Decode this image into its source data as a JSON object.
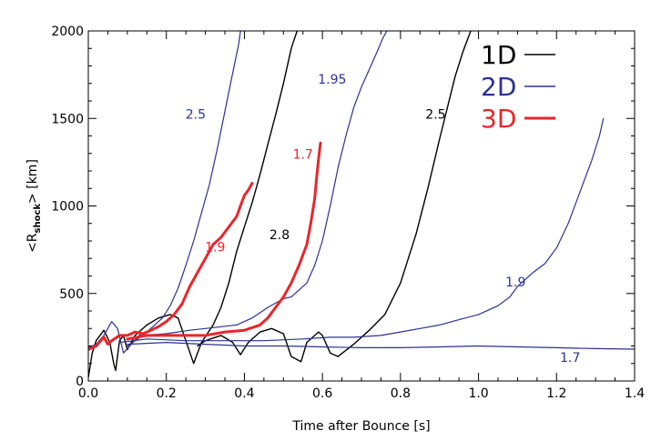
{
  "chart_data": {
    "type": "line",
    "xlabel": "Time after Bounce [s]",
    "ylabel_main": "<R",
    "ylabel_sub": "shock",
    "ylabel_tail": "> [km]",
    "xlim": [
      0,
      1.4
    ],
    "ylim": [
      0,
      2000
    ],
    "xticks": [
      0.0,
      0.2,
      0.4,
      0.6,
      0.8,
      1.0,
      1.2,
      1.4
    ],
    "xtick_labels": [
      "0.0",
      "0.2",
      "0.4",
      "0.6",
      "0.8",
      "1.0",
      "1.2",
      "1.4"
    ],
    "yticks": [
      0,
      500,
      1000,
      1500,
      2000
    ],
    "ytick_labels": [
      "0",
      "500",
      "1000",
      "1500",
      "2000"
    ],
    "grid": false,
    "legend_position": "top-right",
    "legend": [
      {
        "label": "1D",
        "color": "#000000"
      },
      {
        "label": "2D",
        "color": "#2e3192"
      },
      {
        "label": "3D",
        "color": "#e8262b"
      }
    ],
    "series": [
      {
        "dim": "1D",
        "color": "#000000",
        "width": 1.4,
        "points": [
          [
            0.0,
            20
          ],
          [
            0.01,
            160
          ],
          [
            0.02,
            230
          ],
          [
            0.04,
            290
          ],
          [
            0.055,
            220
          ],
          [
            0.065,
            100
          ],
          [
            0.07,
            60
          ],
          [
            0.08,
            230
          ],
          [
            0.09,
            260
          ],
          [
            0.1,
            180
          ],
          [
            0.12,
            260
          ],
          [
            0.15,
            320
          ],
          [
            0.18,
            360
          ],
          [
            0.21,
            380
          ],
          [
            0.23,
            360
          ],
          [
            0.25,
            230
          ],
          [
            0.27,
            100
          ],
          [
            0.29,
            220
          ],
          [
            0.32,
            320
          ],
          [
            0.34,
            420
          ],
          [
            0.36,
            560
          ],
          [
            0.38,
            740
          ],
          [
            0.4,
            880
          ],
          [
            0.42,
            1020
          ],
          [
            0.44,
            1180
          ],
          [
            0.46,
            1350
          ],
          [
            0.48,
            1520
          ],
          [
            0.5,
            1700
          ],
          [
            0.52,
            1900
          ],
          [
            0.535,
            2000
          ]
        ]
      },
      {
        "dim": "1D",
        "color": "#000000",
        "width": 1.4,
        "points": [
          [
            0.28,
            200
          ],
          [
            0.3,
            230
          ],
          [
            0.34,
            260
          ],
          [
            0.37,
            220
          ],
          [
            0.39,
            150
          ],
          [
            0.41,
            220
          ],
          [
            0.44,
            280
          ],
          [
            0.47,
            300
          ],
          [
            0.5,
            270
          ],
          [
            0.52,
            140
          ],
          [
            0.545,
            110
          ],
          [
            0.56,
            220
          ],
          [
            0.59,
            280
          ],
          [
            0.6,
            260
          ],
          [
            0.62,
            160
          ],
          [
            0.64,
            140
          ],
          [
            0.68,
            210
          ],
          [
            0.72,
            290
          ],
          [
            0.76,
            380
          ],
          [
            0.8,
            560
          ],
          [
            0.84,
            840
          ],
          [
            0.87,
            1100
          ],
          [
            0.9,
            1380
          ],
          [
            0.92,
            1560
          ],
          [
            0.94,
            1740
          ],
          [
            0.96,
            1880
          ],
          [
            0.98,
            2000
          ]
        ]
      },
      {
        "dim": "2D",
        "color": "#2e3192",
        "width": 1.2,
        "points": [
          [
            0.0,
            190
          ],
          [
            0.02,
            210
          ],
          [
            0.04,
            260
          ],
          [
            0.06,
            340
          ],
          [
            0.075,
            300
          ],
          [
            0.09,
            160
          ],
          [
            0.11,
            210
          ],
          [
            0.13,
            260
          ],
          [
            0.15,
            280
          ],
          [
            0.17,
            320
          ],
          [
            0.19,
            360
          ],
          [
            0.21,
            430
          ],
          [
            0.23,
            530
          ],
          [
            0.25,
            660
          ],
          [
            0.27,
            800
          ],
          [
            0.29,
            960
          ],
          [
            0.31,
            1120
          ],
          [
            0.33,
            1320
          ],
          [
            0.35,
            1540
          ],
          [
            0.37,
            1760
          ],
          [
            0.385,
            1920
          ],
          [
            0.39,
            2000
          ]
        ]
      },
      {
        "dim": "2D",
        "color": "#2e3192",
        "width": 1.2,
        "points": [
          [
            0.1,
            200
          ],
          [
            0.14,
            260
          ],
          [
            0.2,
            270
          ],
          [
            0.26,
            290
          ],
          [
            0.3,
            300
          ],
          [
            0.34,
            310
          ],
          [
            0.38,
            320
          ],
          [
            0.42,
            360
          ],
          [
            0.46,
            420
          ],
          [
            0.5,
            470
          ],
          [
            0.52,
            480
          ],
          [
            0.54,
            520
          ],
          [
            0.56,
            560
          ],
          [
            0.58,
            660
          ],
          [
            0.6,
            800
          ],
          [
            0.62,
            1000
          ],
          [
            0.64,
            1220
          ],
          [
            0.66,
            1400
          ],
          [
            0.68,
            1560
          ],
          [
            0.7,
            1680
          ],
          [
            0.72,
            1780
          ],
          [
            0.74,
            1880
          ],
          [
            0.755,
            1960
          ],
          [
            0.765,
            2000
          ]
        ]
      },
      {
        "dim": "2D",
        "color": "#2e3192",
        "width": 1.2,
        "points": [
          [
            0.08,
            220
          ],
          [
            0.15,
            240
          ],
          [
            0.25,
            230
          ],
          [
            0.35,
            230
          ],
          [
            0.45,
            230
          ],
          [
            0.55,
            240
          ],
          [
            0.62,
            250
          ],
          [
            0.68,
            250
          ],
          [
            0.75,
            260
          ],
          [
            0.8,
            280
          ],
          [
            0.85,
            300
          ],
          [
            0.9,
            320
          ],
          [
            0.95,
            350
          ],
          [
            1.0,
            380
          ],
          [
            1.05,
            430
          ],
          [
            1.08,
            480
          ],
          [
            1.1,
            540
          ],
          [
            1.14,
            620
          ],
          [
            1.17,
            670
          ],
          [
            1.2,
            760
          ],
          [
            1.23,
            900
          ],
          [
            1.26,
            1080
          ],
          [
            1.29,
            1260
          ],
          [
            1.31,
            1400
          ],
          [
            1.32,
            1500
          ]
        ]
      },
      {
        "dim": "2D",
        "color": "#2e3192",
        "width": 1.2,
        "points": [
          [
            0.1,
            210
          ],
          [
            0.2,
            220
          ],
          [
            0.3,
            210
          ],
          [
            0.4,
            200
          ],
          [
            0.5,
            200
          ],
          [
            0.6,
            195
          ],
          [
            0.7,
            190
          ],
          [
            0.8,
            190
          ],
          [
            0.9,
            195
          ],
          [
            1.0,
            200
          ],
          [
            1.1,
            195
          ],
          [
            1.2,
            190
          ],
          [
            1.3,
            185
          ],
          [
            1.4,
            182
          ]
        ]
      },
      {
        "dim": "3D",
        "color": "#e8262b",
        "width": 3,
        "points": [
          [
            0.0,
            180
          ],
          [
            0.02,
            200
          ],
          [
            0.04,
            250
          ],
          [
            0.05,
            210
          ],
          [
            0.06,
            230
          ],
          [
            0.08,
            260
          ],
          [
            0.1,
            260
          ],
          [
            0.12,
            280
          ],
          [
            0.14,
            270
          ],
          [
            0.16,
            290
          ],
          [
            0.18,
            310
          ],
          [
            0.2,
            340
          ],
          [
            0.22,
            380
          ],
          [
            0.24,
            440
          ],
          [
            0.26,
            540
          ],
          [
            0.28,
            620
          ],
          [
            0.3,
            700
          ],
          [
            0.32,
            780
          ],
          [
            0.34,
            820
          ],
          [
            0.36,
            880
          ],
          [
            0.38,
            940
          ],
          [
            0.39,
            1000
          ],
          [
            0.4,
            1060
          ],
          [
            0.41,
            1090
          ],
          [
            0.42,
            1130
          ]
        ]
      },
      {
        "dim": "3D",
        "color": "#e8262b",
        "width": 3,
        "points": [
          [
            0.1,
            240
          ],
          [
            0.15,
            260
          ],
          [
            0.2,
            260
          ],
          [
            0.25,
            260
          ],
          [
            0.3,
            260
          ],
          [
            0.35,
            280
          ],
          [
            0.4,
            290
          ],
          [
            0.44,
            320
          ],
          [
            0.46,
            360
          ],
          [
            0.48,
            420
          ],
          [
            0.5,
            480
          ],
          [
            0.52,
            560
          ],
          [
            0.54,
            660
          ],
          [
            0.56,
            780
          ],
          [
            0.57,
            900
          ],
          [
            0.58,
            1040
          ],
          [
            0.585,
            1160
          ],
          [
            0.59,
            1270
          ],
          [
            0.595,
            1360
          ]
        ]
      }
    ],
    "annotations": [
      {
        "text": "2.5",
        "x": 0.275,
        "y": 1500,
        "color": "#2e3192"
      },
      {
        "text": "1.95",
        "x": 0.625,
        "y": 1700,
        "color": "#2e3192"
      },
      {
        "text": "2.5",
        "x": 0.89,
        "y": 1500,
        "color": "#000000"
      },
      {
        "text": "1.7",
        "x": 0.55,
        "y": 1270,
        "color": "#e8262b"
      },
      {
        "text": "1.9",
        "x": 0.325,
        "y": 740,
        "color": "#e8262b"
      },
      {
        "text": "2.8",
        "x": 0.49,
        "y": 810,
        "color": "#000000"
      },
      {
        "text": "1.9",
        "x": 1.095,
        "y": 540,
        "color": "#2e3192"
      },
      {
        "text": "1.7",
        "x": 1.235,
        "y": 110,
        "color": "#2e3192"
      }
    ]
  }
}
